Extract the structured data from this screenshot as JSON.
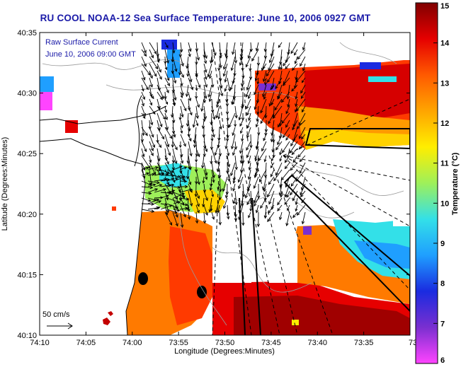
{
  "title": "RU COOL  NOAA-12  Sea Surface Temperature:  June 10, 2006 0927 GMT",
  "caption_line1": "Raw Surface Current",
  "caption_line2": "June 10, 2006 09:00 GMT",
  "scale_label": "50 cm/s",
  "x_axis_label": "Longitude (Degrees:Minutes)",
  "y_axis_label": "Latitude (Degrees:Minutes)",
  "colorbar_label": "Temperature (°C)",
  "x_ticks": [
    "74:10",
    "74:05",
    "74:00",
    "73:55",
    "73:50",
    "73:45",
    "73:40",
    "73:35",
    "73:3"
  ],
  "y_ticks": [
    "40:35",
    "40:30",
    "40:25",
    "40:20",
    "40:15",
    "40:10"
  ],
  "colorbar_ticks": [
    "15",
    "14",
    "13",
    "12",
    "11",
    "10",
    "9",
    "8",
    "7",
    "6"
  ],
  "colorbar_range": [
    6,
    15
  ],
  "colorbar_colors": [
    "#ff44ff",
    "#7a2fd0",
    "#1a2be0",
    "#1f9fff",
    "#33e0e8",
    "#9ef05a",
    "#ffee00",
    "#ffa500",
    "#ff5a00",
    "#e60000",
    "#800000"
  ],
  "land_color": "#ffffff",
  "vector_color": "#000000"
}
